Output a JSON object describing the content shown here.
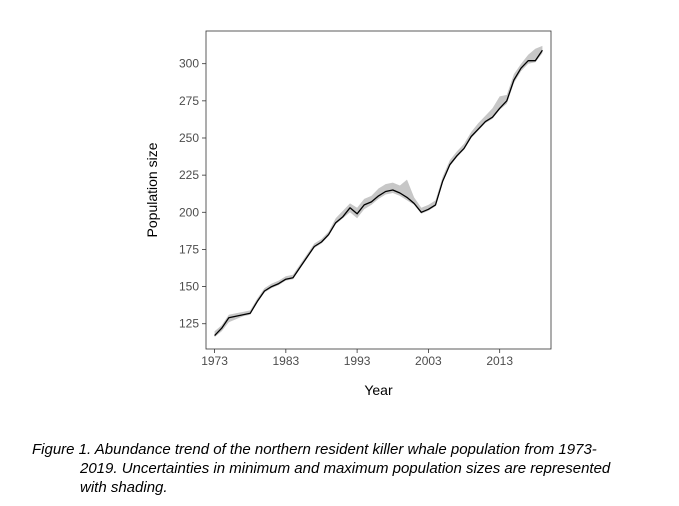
{
  "chart_data": {
    "type": "line",
    "xlabel": "Year",
    "ylabel": "Population size",
    "xlim": [
      1971.8,
      2020.2
    ],
    "ylim": [
      108,
      322
    ],
    "x_ticks": [
      1973,
      1983,
      1993,
      2003,
      2013
    ],
    "y_ticks": [
      125,
      150,
      175,
      200,
      225,
      250,
      275,
      300
    ],
    "grid": false,
    "legend": "none",
    "colors": {
      "line": "#000000",
      "band": "#bdbdbd",
      "panel_border": "#333333"
    },
    "series": [
      {
        "x": [
          1973,
          1974,
          1975,
          1976,
          1977,
          1978,
          1979,
          1980,
          1981,
          1982,
          1983,
          1984,
          1985,
          1986,
          1987,
          1988,
          1989,
          1990,
          1991,
          1992,
          1993,
          1994,
          1995,
          1996,
          1997,
          1998,
          1999,
          2000,
          2001,
          2002,
          2003,
          2004,
          2005,
          2006,
          2007,
          2008,
          2009,
          2010,
          2011,
          2012,
          2013,
          2014,
          2015,
          2016,
          2017,
          2018,
          2019
        ],
        "y": [
          117,
          122,
          129,
          130,
          131,
          132,
          140,
          147,
          150,
          152,
          155,
          156,
          163,
          170,
          177,
          180,
          185,
          193,
          197,
          203,
          199,
          205,
          207,
          211,
          214,
          215,
          213,
          210,
          206,
          200,
          202,
          205,
          221,
          232,
          238,
          243,
          251,
          256,
          261,
          264,
          270,
          275,
          289,
          297,
          302,
          302,
          309
        ],
        "ymin": [
          116,
          120,
          126,
          128,
          130,
          131,
          139,
          146,
          149,
          151,
          154,
          155,
          162,
          169,
          176,
          179,
          184,
          192,
          196,
          200,
          196,
          202,
          205,
          209,
          212,
          213,
          211,
          208,
          205,
          199,
          201,
          204,
          220,
          231,
          237,
          242,
          250,
          255,
          260,
          263,
          269,
          273,
          287,
          295,
          300,
          301,
          307
        ],
        "ymax": [
          120,
          124,
          131,
          132,
          133,
          134,
          142,
          149,
          152,
          154,
          157,
          158,
          165,
          172,
          179,
          182,
          187,
          196,
          201,
          206,
          203,
          209,
          211,
          216,
          219,
          220,
          218,
          222,
          210,
          203,
          205,
          208,
          224,
          235,
          241,
          246,
          254,
          260,
          265,
          270,
          278,
          279,
          293,
          300,
          306,
          310,
          312
        ]
      }
    ]
  },
  "caption": {
    "line1": "Figure 1. Abundance trend of the northern resident killer whale population from 1973-",
    "line2": "2019. Uncertainties in minimum and maximum population sizes are represented",
    "line3": "with shading."
  }
}
